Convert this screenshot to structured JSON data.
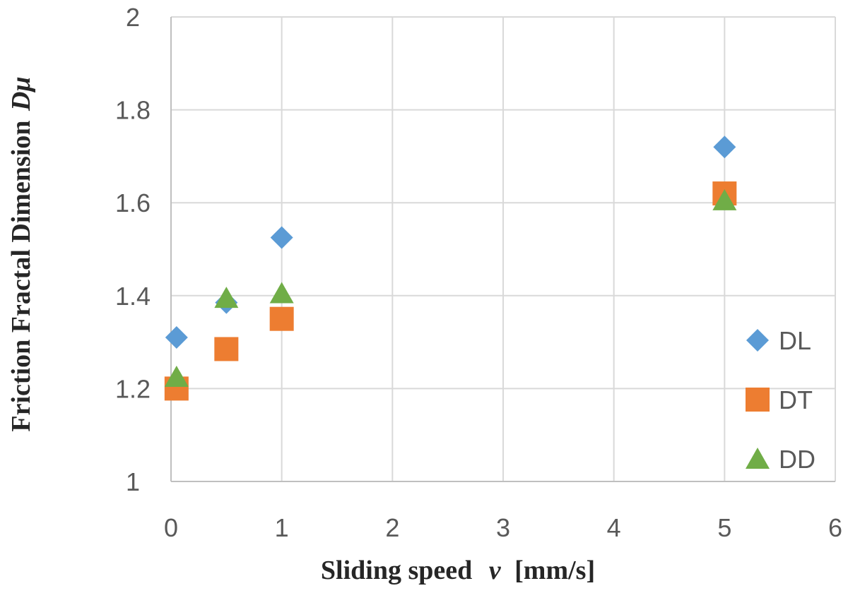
{
  "chart_data": {
    "type": "scatter",
    "xlabel_prefix": "Sliding speed",
    "xlabel_var": "v",
    "xlabel_unit": "[mm/s]",
    "ylabel_prefix": "Friction Fractal Dimension",
    "ylabel_var": "Dμ",
    "xlim": [
      0,
      6
    ],
    "ylim": [
      1,
      2
    ],
    "x_ticks": [
      "0",
      "1",
      "2",
      "3",
      "4",
      "5",
      "6"
    ],
    "y_ticks": [
      "1",
      "1.2",
      "1.4",
      "1.6",
      "1.8",
      "2"
    ],
    "grid": true,
    "legend_position": "right",
    "series": [
      {
        "name": "DL",
        "marker": "diamond",
        "color": "#5B9BD5",
        "points": [
          {
            "x": 0.05,
            "y": 1.31
          },
          {
            "x": 0.5,
            "y": 1.385
          },
          {
            "x": 1,
            "y": 1.525
          },
          {
            "x": 5,
            "y": 1.72
          }
        ]
      },
      {
        "name": "DT",
        "marker": "square",
        "color": "#ED7D31",
        "points": [
          {
            "x": 0.05,
            "y": 1.2
          },
          {
            "x": 0.5,
            "y": 1.285
          },
          {
            "x": 1,
            "y": 1.35
          },
          {
            "x": 5,
            "y": 1.62
          }
        ]
      },
      {
        "name": "DD",
        "marker": "triangle",
        "color": "#70AD47",
        "points": [
          {
            "x": 0.05,
            "y": 1.225
          },
          {
            "x": 0.5,
            "y": 1.395
          },
          {
            "x": 1,
            "y": 1.405
          },
          {
            "x": 5,
            "y": 1.605
          }
        ]
      }
    ]
  }
}
